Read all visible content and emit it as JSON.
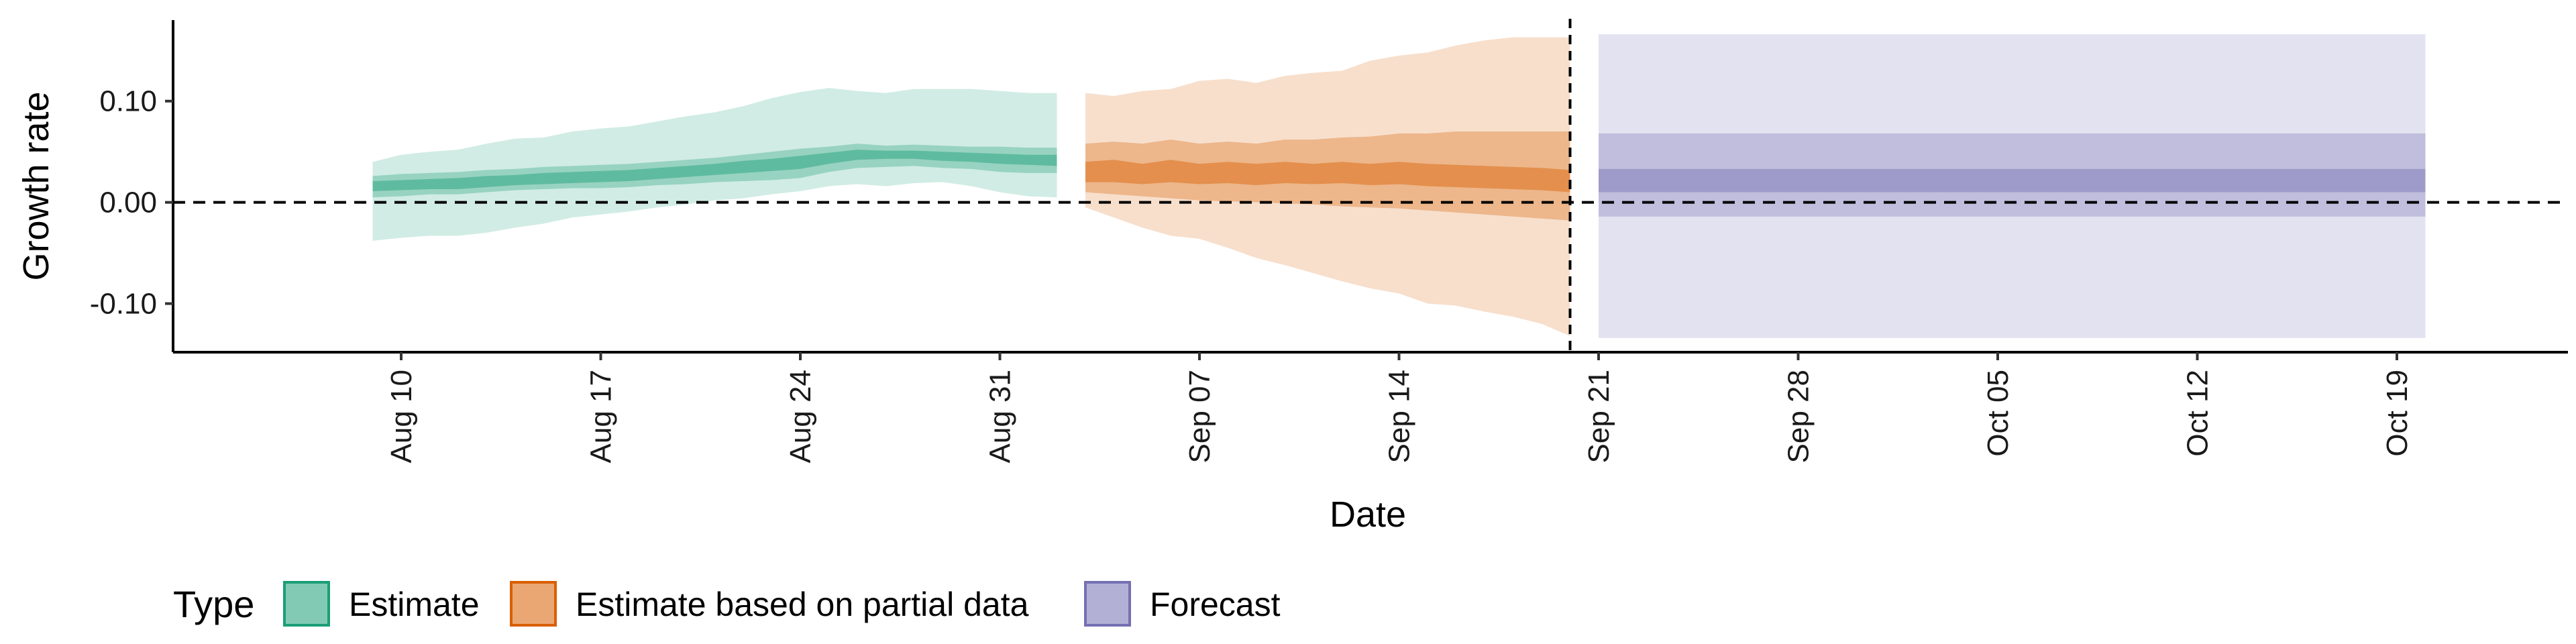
{
  "chart_data": {
    "type": "area",
    "title": "",
    "xlabel": "Date",
    "ylabel": "Growth rate",
    "ylim": [
      -0.148,
      0.18
    ],
    "y_ticks": [
      {
        "value": 0.1,
        "label": "0.10"
      },
      {
        "value": 0.0,
        "label": "0.00"
      },
      {
        "value": -0.1,
        "label": "-0.10"
      }
    ],
    "xlim": [
      "2020-08-02",
      "2020-10-25"
    ],
    "x_ticks": [
      {
        "date": "2020-08-10",
        "label": "Aug 10"
      },
      {
        "date": "2020-08-17",
        "label": "Aug 17"
      },
      {
        "date": "2020-08-24",
        "label": "Aug 24"
      },
      {
        "date": "2020-08-31",
        "label": "Aug 31"
      },
      {
        "date": "2020-09-07",
        "label": "Sep 07"
      },
      {
        "date": "2020-09-14",
        "label": "Sep 14"
      },
      {
        "date": "2020-09-21",
        "label": "Sep 21"
      },
      {
        "date": "2020-09-28",
        "label": "Sep 28"
      },
      {
        "date": "2020-10-05",
        "label": "Oct 05"
      },
      {
        "date": "2020-10-12",
        "label": "Oct 12"
      },
      {
        "date": "2020-10-19",
        "label": "Oct 19"
      }
    ],
    "hline": 0,
    "vline": "2020-09-20",
    "grid": false,
    "legend": {
      "title": "Type",
      "position": "bottom"
    },
    "series": [
      {
        "name": "Estimate",
        "color": "#1b9e77",
        "x": [
          "2020-08-09",
          "2020-08-10",
          "2020-08-11",
          "2020-08-12",
          "2020-08-13",
          "2020-08-14",
          "2020-08-15",
          "2020-08-16",
          "2020-08-17",
          "2020-08-18",
          "2020-08-19",
          "2020-08-20",
          "2020-08-21",
          "2020-08-22",
          "2020-08-23",
          "2020-08-24",
          "2020-08-25",
          "2020-08-26",
          "2020-08-27",
          "2020-08-28",
          "2020-08-29",
          "2020-08-30",
          "2020-08-31",
          "2020-09-01",
          "2020-09-02"
        ],
        "lower90": [
          -0.038,
          -0.035,
          -0.033,
          -0.033,
          -0.03,
          -0.025,
          -0.021,
          -0.015,
          -0.012,
          -0.009,
          -0.005,
          -0.002,
          0.002,
          0.004,
          0.008,
          0.011,
          0.016,
          0.018,
          0.016,
          0.019,
          0.02,
          0.016,
          0.01,
          0.006,
          0.005
        ],
        "upper90": [
          0.04,
          0.047,
          0.05,
          0.052,
          0.058,
          0.063,
          0.064,
          0.07,
          0.073,
          0.075,
          0.08,
          0.085,
          0.089,
          0.095,
          0.103,
          0.109,
          0.113,
          0.11,
          0.108,
          0.112,
          0.112,
          0.112,
          0.11,
          0.108,
          0.108
        ],
        "lower50": [
          0.005,
          0.006,
          0.008,
          0.008,
          0.01,
          0.012,
          0.013,
          0.014,
          0.014,
          0.015,
          0.017,
          0.018,
          0.02,
          0.021,
          0.022,
          0.024,
          0.03,
          0.034,
          0.035,
          0.036,
          0.034,
          0.033,
          0.03,
          0.029,
          0.029
        ],
        "upper50": [
          0.026,
          0.028,
          0.029,
          0.03,
          0.032,
          0.033,
          0.035,
          0.036,
          0.037,
          0.038,
          0.04,
          0.042,
          0.044,
          0.047,
          0.05,
          0.053,
          0.055,
          0.058,
          0.056,
          0.057,
          0.056,
          0.055,
          0.055,
          0.054,
          0.054
        ],
        "lower20": [
          0.011,
          0.012,
          0.013,
          0.013,
          0.015,
          0.017,
          0.018,
          0.019,
          0.02,
          0.021,
          0.023,
          0.025,
          0.027,
          0.029,
          0.031,
          0.033,
          0.038,
          0.042,
          0.043,
          0.043,
          0.041,
          0.04,
          0.038,
          0.037,
          0.036
        ],
        "upper20": [
          0.021,
          0.022,
          0.023,
          0.024,
          0.026,
          0.027,
          0.029,
          0.03,
          0.031,
          0.032,
          0.034,
          0.036,
          0.038,
          0.041,
          0.043,
          0.046,
          0.049,
          0.052,
          0.051,
          0.051,
          0.05,
          0.049,
          0.048,
          0.047,
          0.047
        ]
      },
      {
        "name": "Estimate based on partial data",
        "color": "#d95f02",
        "x": [
          "2020-09-03",
          "2020-09-04",
          "2020-09-05",
          "2020-09-06",
          "2020-09-07",
          "2020-09-08",
          "2020-09-09",
          "2020-09-10",
          "2020-09-11",
          "2020-09-12",
          "2020-09-13",
          "2020-09-14",
          "2020-09-15",
          "2020-09-16",
          "2020-09-17",
          "2020-09-18",
          "2020-09-19",
          "2020-09-20"
        ],
        "lower90": [
          -0.005,
          -0.015,
          -0.025,
          -0.033,
          -0.036,
          -0.045,
          -0.055,
          -0.062,
          -0.07,
          -0.078,
          -0.085,
          -0.09,
          -0.1,
          -0.102,
          -0.108,
          -0.113,
          -0.12,
          -0.132
        ],
        "upper90": [
          0.108,
          0.105,
          0.11,
          0.112,
          0.12,
          0.122,
          0.118,
          0.125,
          0.128,
          0.13,
          0.14,
          0.145,
          0.148,
          0.155,
          0.16,
          0.163,
          0.163,
          0.163
        ],
        "lower50": [
          0.01,
          0.008,
          0.006,
          0.004,
          0.002,
          0.001,
          0.0,
          -0.001,
          -0.002,
          -0.004,
          -0.005,
          -0.006,
          -0.008,
          -0.01,
          -0.012,
          -0.014,
          -0.016,
          -0.018
        ],
        "upper50": [
          0.058,
          0.06,
          0.058,
          0.062,
          0.058,
          0.06,
          0.058,
          0.062,
          0.062,
          0.064,
          0.065,
          0.068,
          0.068,
          0.07,
          0.07,
          0.07,
          0.07,
          0.07
        ],
        "lower20": [
          0.02,
          0.02,
          0.018,
          0.02,
          0.018,
          0.019,
          0.017,
          0.019,
          0.018,
          0.019,
          0.017,
          0.018,
          0.016,
          0.015,
          0.014,
          0.013,
          0.012,
          0.01
        ],
        "upper20": [
          0.04,
          0.042,
          0.038,
          0.042,
          0.038,
          0.04,
          0.038,
          0.04,
          0.038,
          0.04,
          0.038,
          0.04,
          0.038,
          0.037,
          0.036,
          0.035,
          0.034,
          0.032
        ]
      },
      {
        "name": "Forecast",
        "color": "#7570b3",
        "x": [
          "2020-09-21",
          "2020-10-20"
        ],
        "lower90": [
          -0.134,
          -0.134
        ],
        "upper90": [
          0.166,
          0.166
        ],
        "lower50": [
          -0.014,
          -0.014
        ],
        "upper50": [
          0.068,
          0.068
        ],
        "lower20": [
          0.01,
          0.01
        ],
        "upper20": [
          0.033,
          0.033
        ]
      }
    ]
  }
}
